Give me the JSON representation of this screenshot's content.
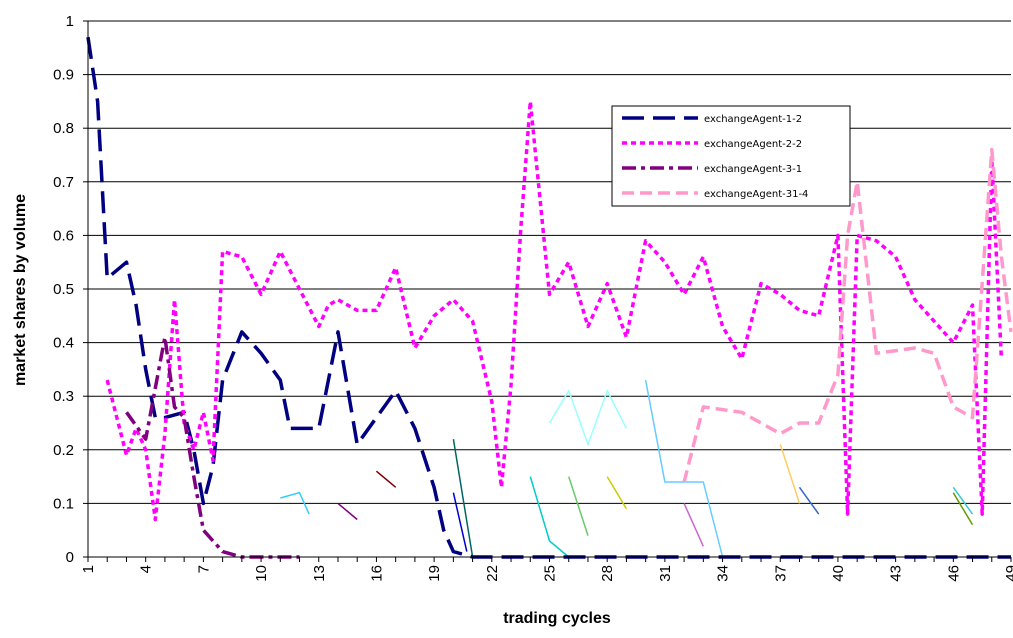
{
  "chart_data": {
    "type": "line",
    "title": "",
    "xlabel": "trading cycles",
    "ylabel": "market shares by volume",
    "ylim": [
      0,
      1
    ],
    "grid": true,
    "legend_position": "top-right",
    "x_tick_labels": [
      "1",
      "4",
      "7",
      "10",
      "13",
      "16",
      "19",
      "22",
      "25",
      "28",
      "31",
      "34",
      "37",
      "40",
      "43",
      "46",
      "49"
    ],
    "y_tick_labels": [
      "0",
      "0.1",
      "0.2",
      "0.3",
      "0.4",
      "0.5",
      "0.6",
      "0.7",
      "0.8",
      "0.9",
      "1"
    ],
    "series": [
      {
        "name": "exchangeAgent-1-2",
        "color": "#000080",
        "style": "long-dash",
        "points": [
          [
            1,
            0.97
          ],
          [
            1.5,
            0.85
          ],
          [
            2,
            0.52
          ],
          [
            3,
            0.55
          ],
          [
            3.5,
            0.47
          ],
          [
            4,
            0.35
          ],
          [
            4.5,
            0.26
          ],
          [
            5,
            0.26
          ],
          [
            6,
            0.27
          ],
          [
            6.5,
            0.2
          ],
          [
            7,
            0.1
          ],
          [
            7.5,
            0.17
          ],
          [
            8,
            0.33
          ],
          [
            9,
            0.42
          ],
          [
            10,
            0.38
          ],
          [
            11,
            0.33
          ],
          [
            11.5,
            0.24
          ],
          [
            12,
            0.24
          ],
          [
            13,
            0.24
          ],
          [
            14,
            0.42
          ],
          [
            15,
            0.21
          ],
          [
            16,
            0.26
          ],
          [
            17,
            0.31
          ],
          [
            18,
            0.24
          ],
          [
            19,
            0.13
          ],
          [
            19.5,
            0.05
          ],
          [
            20,
            0.01
          ],
          [
            21,
            0
          ],
          [
            49,
            0
          ]
        ]
      },
      {
        "name": "exchangeAgent-2-2",
        "color": "#ff00ff",
        "style": "dotted",
        "points": [
          [
            2,
            0.33
          ],
          [
            3,
            0.19
          ],
          [
            3.5,
            0.24
          ],
          [
            4,
            0.2
          ],
          [
            4.5,
            0.07
          ],
          [
            5,
            0.23
          ],
          [
            5.5,
            0.48
          ],
          [
            6,
            0.25
          ],
          [
            6.5,
            0.2
          ],
          [
            7,
            0.27
          ],
          [
            7.5,
            0.18
          ],
          [
            8,
            0.57
          ],
          [
            9,
            0.56
          ],
          [
            10,
            0.49
          ],
          [
            11,
            0.57
          ],
          [
            12,
            0.5
          ],
          [
            13,
            0.43
          ],
          [
            13.5,
            0.47
          ],
          [
            14,
            0.48
          ],
          [
            15,
            0.46
          ],
          [
            16,
            0.46
          ],
          [
            17,
            0.54
          ],
          [
            18,
            0.39
          ],
          [
            19,
            0.45
          ],
          [
            20,
            0.48
          ],
          [
            21,
            0.44
          ],
          [
            22,
            0.29
          ],
          [
            22.5,
            0.13
          ],
          [
            23,
            0.32
          ],
          [
            23.5,
            0.61
          ],
          [
            24,
            0.85
          ],
          [
            25,
            0.49
          ],
          [
            26,
            0.55
          ],
          [
            27,
            0.43
          ],
          [
            28,
            0.51
          ],
          [
            29,
            0.41
          ],
          [
            30,
            0.59
          ],
          [
            31,
            0.55
          ],
          [
            32,
            0.49
          ],
          [
            33,
            0.56
          ],
          [
            34,
            0.43
          ],
          [
            35,
            0.37
          ],
          [
            36,
            0.51
          ],
          [
            37,
            0.49
          ],
          [
            38,
            0.46
          ],
          [
            39,
            0.45
          ],
          [
            40,
            0.6
          ],
          [
            40.5,
            0.08
          ],
          [
            41,
            0.6
          ],
          [
            42,
            0.59
          ],
          [
            43,
            0.56
          ],
          [
            44,
            0.48
          ],
          [
            45,
            0.44
          ],
          [
            46,
            0.4
          ],
          [
            47,
            0.47
          ],
          [
            47.5,
            0.08
          ],
          [
            48,
            0.74
          ],
          [
            48.5,
            0.37
          ]
        ]
      },
      {
        "name": "exchangeAgent-3-1",
        "color": "#800080",
        "style": "dash-dot",
        "points": [
          [
            3,
            0.27
          ],
          [
            4,
            0.22
          ],
          [
            5,
            0.41
          ],
          [
            5.5,
            0.28
          ],
          [
            6,
            0.26
          ],
          [
            6.5,
            0.15
          ],
          [
            7,
            0.05
          ],
          [
            8,
            0.01
          ],
          [
            9,
            0
          ],
          [
            12,
            0
          ]
        ]
      },
      {
        "name": "exchangeAgent-31-4",
        "color": "#ff99cc",
        "style": "dash",
        "points": [
          [
            32,
            0.14
          ],
          [
            33,
            0.28
          ],
          [
            35,
            0.27
          ],
          [
            36,
            0.25
          ],
          [
            37,
            0.23
          ],
          [
            38,
            0.25
          ],
          [
            39,
            0.25
          ],
          [
            40,
            0.34
          ],
          [
            40.5,
            0.6
          ],
          [
            41,
            0.7
          ],
          [
            42,
            0.38
          ],
          [
            44,
            0.39
          ],
          [
            45,
            0.38
          ],
          [
            46,
            0.28
          ],
          [
            47,
            0.26
          ],
          [
            48,
            0.76
          ],
          [
            48.5,
            0.56
          ],
          [
            49,
            0.42
          ]
        ]
      }
    ],
    "minor_segments": [
      {
        "color": "#33ccff",
        "points": [
          [
            11,
            0.11
          ],
          [
            12,
            0.12
          ],
          [
            12.5,
            0.08
          ]
        ]
      },
      {
        "color": "#800000",
        "points": [
          [
            16,
            0.16
          ],
          [
            17,
            0.13
          ]
        ]
      },
      {
        "color": "#800080",
        "points": [
          [
            14,
            0.1
          ],
          [
            15,
            0.07
          ]
        ]
      },
      {
        "color": "#006666",
        "points": [
          [
            20,
            0.22
          ],
          [
            21,
            0
          ]
        ]
      },
      {
        "color": "#0000cc",
        "points": [
          [
            20,
            0.12
          ],
          [
            20.7,
            0.01
          ]
        ]
      },
      {
        "color": "#00cccc",
        "points": [
          [
            24,
            0.15
          ],
          [
            25,
            0.03
          ],
          [
            26,
            0
          ]
        ]
      },
      {
        "color": "#66cc66",
        "points": [
          [
            26,
            0.15
          ],
          [
            27,
            0.04
          ]
        ]
      },
      {
        "color": "#99ffff",
        "points": [
          [
            25,
            0.25
          ],
          [
            26,
            0.31
          ],
          [
            27,
            0.21
          ],
          [
            28,
            0.31
          ],
          [
            29,
            0.24
          ]
        ]
      },
      {
        "color": "#cccc00",
        "points": [
          [
            28,
            0.15
          ],
          [
            29,
            0.09
          ]
        ]
      },
      {
        "color": "#66ccff",
        "points": [
          [
            30,
            0.33
          ],
          [
            31,
            0.14
          ],
          [
            32,
            0.14
          ],
          [
            33,
            0.14
          ],
          [
            34,
            0
          ]
        ]
      },
      {
        "color": "#cc66cc",
        "points": [
          [
            32,
            0.1
          ],
          [
            33,
            0.02
          ]
        ]
      },
      {
        "color": "#ffcc66",
        "points": [
          [
            37,
            0.21
          ],
          [
            38,
            0.1
          ]
        ]
      },
      {
        "color": "#3366cc",
        "points": [
          [
            38,
            0.13
          ],
          [
            39,
            0.08
          ]
        ]
      },
      {
        "color": "#669900",
        "points": [
          [
            46,
            0.12
          ],
          [
            47,
            0.06
          ]
        ]
      },
      {
        "color": "#33cccc",
        "points": [
          [
            46,
            0.13
          ],
          [
            47,
            0.08
          ]
        ]
      }
    ]
  }
}
